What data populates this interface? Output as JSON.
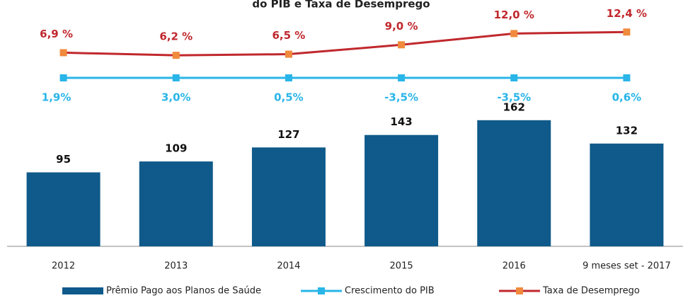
{
  "chart_data": {
    "type": "bar",
    "title": "do PIB e Taxa de Desemprego",
    "categories": [
      "2012",
      "2013",
      "2014",
      "2015",
      "2016",
      "9 meses set - 2017"
    ],
    "ylim": [
      0,
      200
    ],
    "y2lim": [
      0,
      20
    ],
    "series": [
      {
        "name": "Prêmio Pago aos Planos de Saúde",
        "color": "#0f5a8a",
        "values": [
          95,
          109,
          127,
          143,
          162,
          132
        ]
      },
      {
        "name": "Crescimento do PIB",
        "color": "#29b5e8",
        "type": "line",
        "values": [
          1.9,
          3.0,
          0.5,
          -3.5,
          -3.5,
          0.6
        ],
        "value_labels": [
          "1,9%",
          "3,0%",
          "0,5%",
          "-3,5%",
          "-3,5%",
          "0,6%"
        ]
      },
      {
        "name": "Taxa de Desemprego",
        "color": "#c0282d",
        "marker_color": "#f08a3c",
        "type": "line",
        "axis": "y2",
        "values": [
          6.9,
          6.2,
          6.5,
          9.0,
          12.0,
          12.4
        ],
        "value_labels": [
          "6,9 %",
          "6,2 %",
          "6,5 %",
          "9,0 %",
          "12,0 %",
          "12,4 %"
        ]
      }
    ]
  }
}
